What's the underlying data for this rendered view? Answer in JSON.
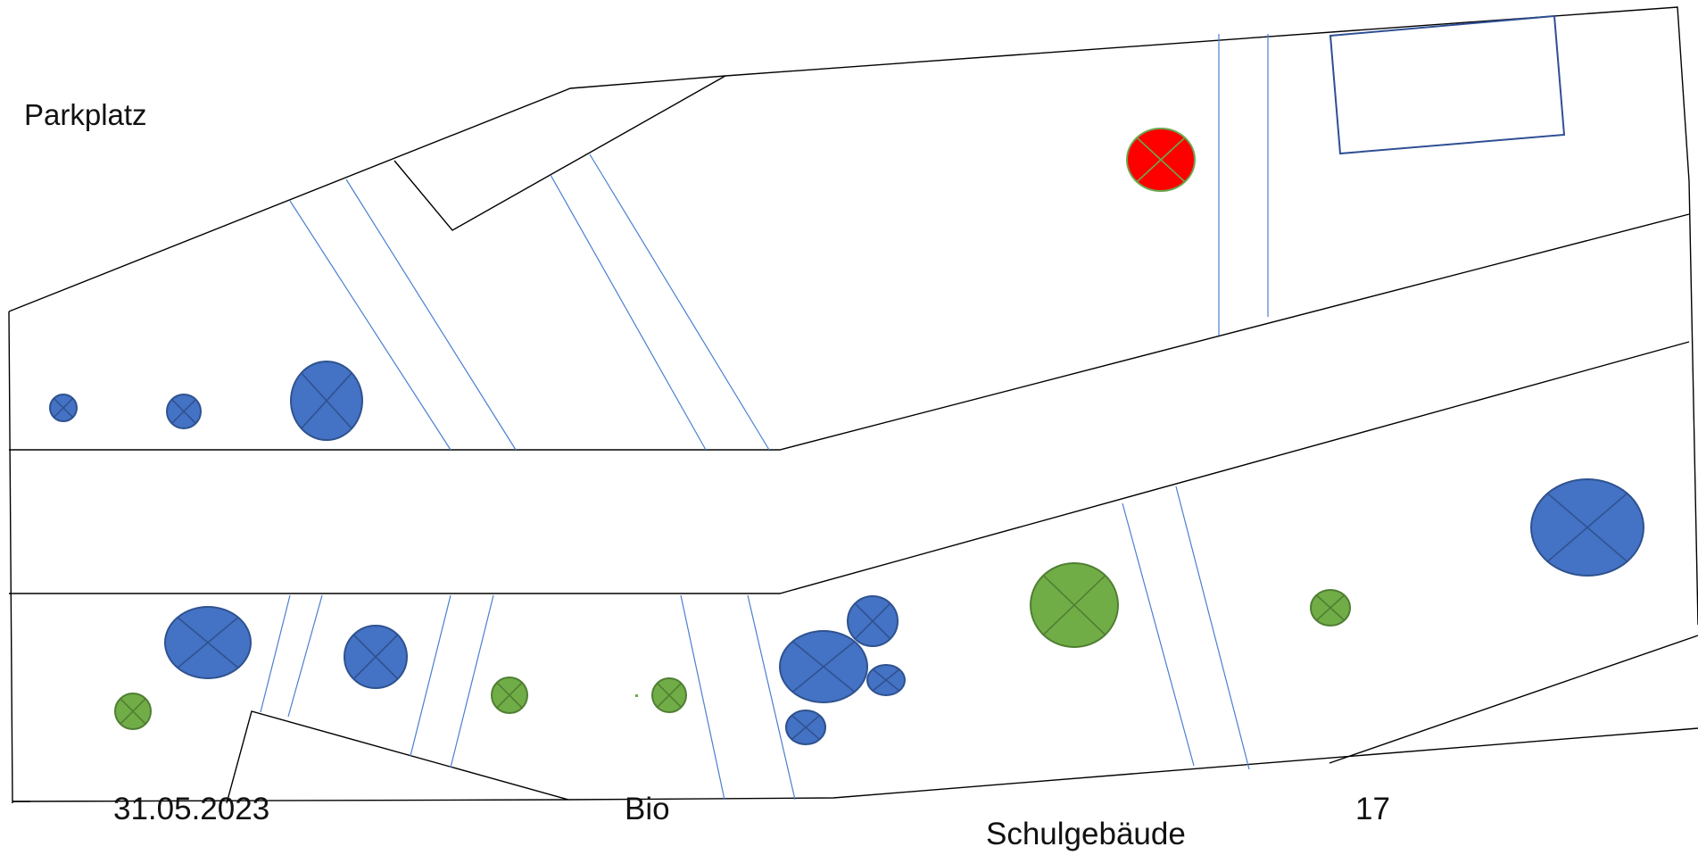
{
  "labels": {
    "parking": "Parkplatz",
    "school_building": "Schulgebäude",
    "date": "31.05.2023",
    "subject": "Bio",
    "number": "17"
  },
  "colors": {
    "blue_tree": "#4472c4",
    "blue_tree_stroke": "#2f528f",
    "green_tree": "#70ad47",
    "green_tree_stroke": "#507e32",
    "red_tree": "#ff0000",
    "red_tree_stroke": "#6aa84f",
    "path_line": "#4a7fd0",
    "outline": "#000000"
  },
  "legend_note": "",
  "tree_types": [
    "blue",
    "green",
    "red"
  ]
}
